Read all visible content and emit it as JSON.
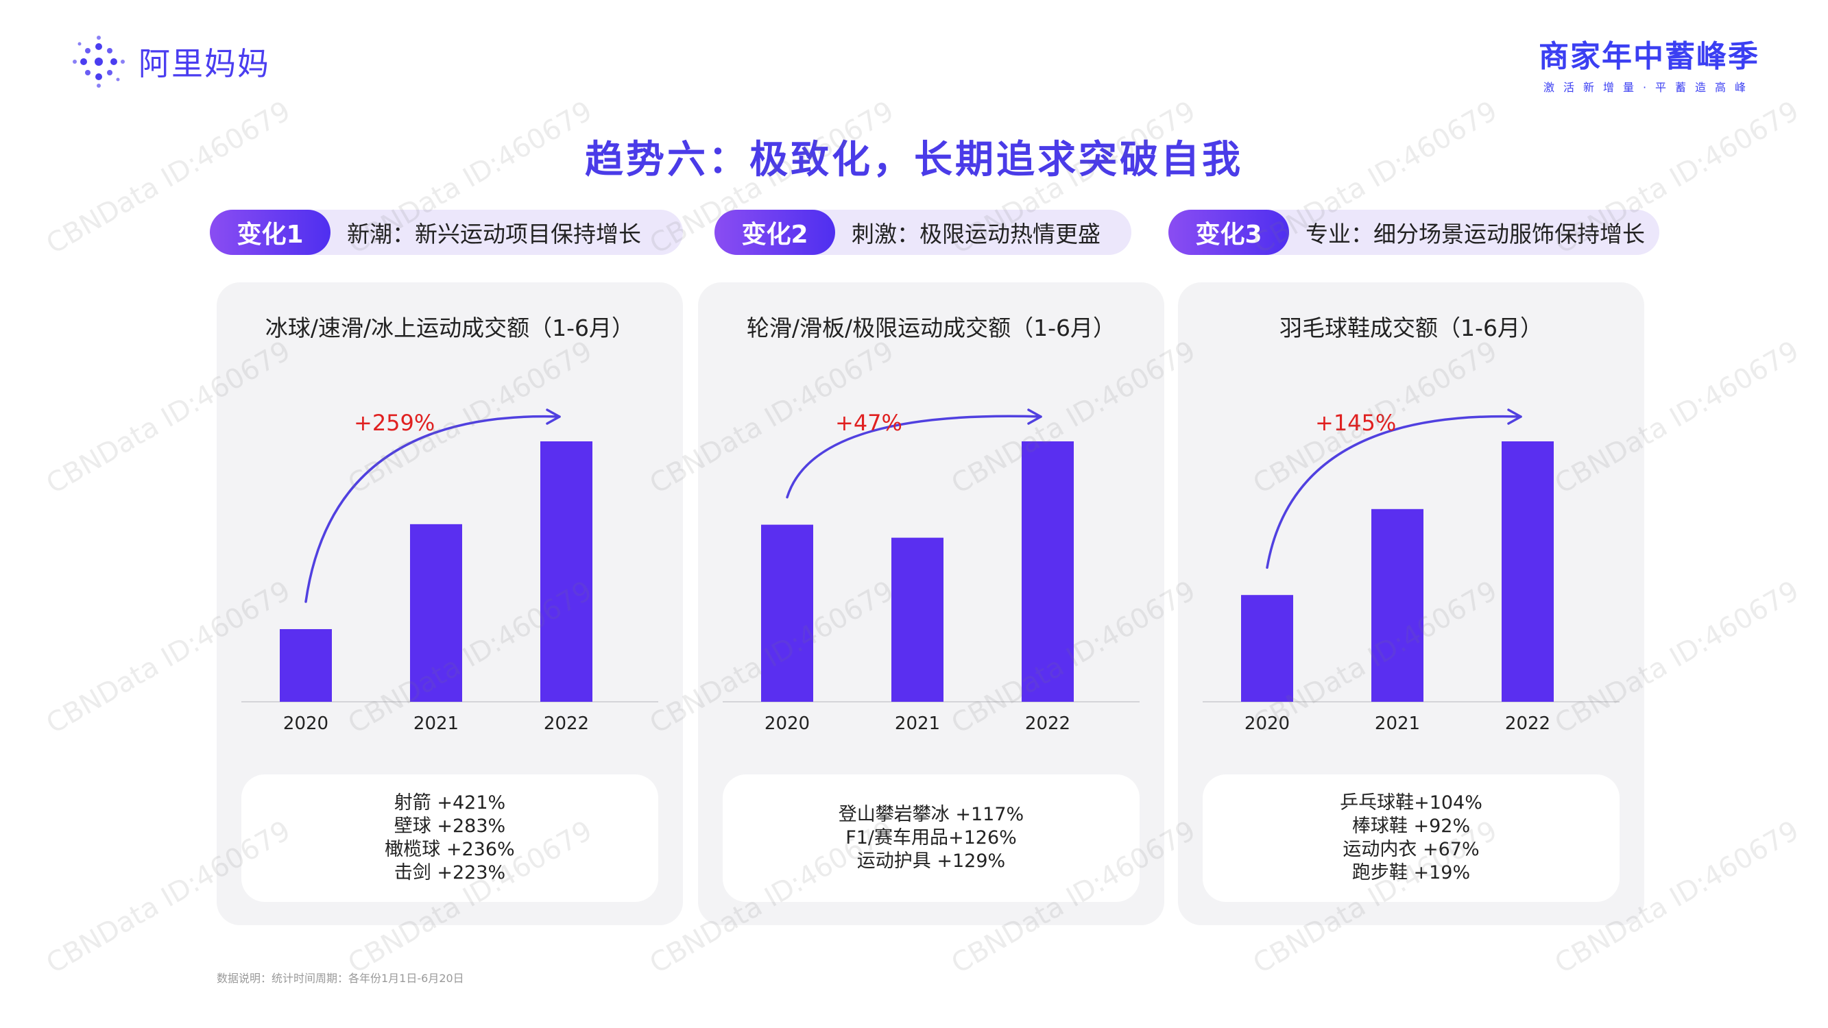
{
  "header": {
    "logo_text": "阿里妈妈",
    "brand_title": "商家年中蓄峰季",
    "brand_subtitle": "激活新增量·平蓄造高峰"
  },
  "page_title": "趋势六：极致化，长期追求突破自我",
  "changes": [
    {
      "tag": "变化1",
      "text": "新潮：新兴运动项目保持增长"
    },
    {
      "tag": "变化2",
      "text": "刺激：极限运动热情更盛"
    },
    {
      "tag": "变化3",
      "text": "专业：细分场景运动服饰保持增长"
    }
  ],
  "colors": {
    "bar": "#5a2ff0",
    "arrow": "#5040e0",
    "growth_label": "#e02020"
  },
  "chart_data": [
    {
      "type": "bar",
      "title": "冰球/速滑/冰上运动成交额（1-6月）",
      "categories": [
        "2020",
        "2021",
        "2022"
      ],
      "values": [
        27.9,
        68.2,
        100
      ],
      "ylim": [
        0,
        100
      ],
      "growth_label": "+259%",
      "notes": [
        "射箭 +421%",
        "壁球 +283%",
        "橄榄球 +236%",
        "击剑 +223%"
      ]
    },
    {
      "type": "bar",
      "title": "轮滑/滑板/极限运动成交额（1-6月）",
      "categories": [
        "2020",
        "2021",
        "2022"
      ],
      "values": [
        68,
        63,
        100
      ],
      "ylim": [
        0,
        100
      ],
      "growth_label": "+47%",
      "notes": [
        "登山攀岩攀冰 +117%",
        "F1/赛车用品+126%",
        "运动护具 +129%"
      ]
    },
    {
      "type": "bar",
      "title": "羽毛球鞋成交额（1-6月）",
      "categories": [
        "2020",
        "2021",
        "2022"
      ],
      "values": [
        41,
        74,
        100
      ],
      "ylim": [
        0,
        100
      ],
      "growth_label": "+145%",
      "notes": [
        "乒乓球鞋+104%",
        "棒球鞋 +92%",
        "运动内衣 +67%",
        "跑步鞋 +19%"
      ]
    }
  ],
  "footnote": "数据说明：统计时间周期：各年份1月1日-6月20日",
  "watermark_text": "CBNData ID:460679"
}
